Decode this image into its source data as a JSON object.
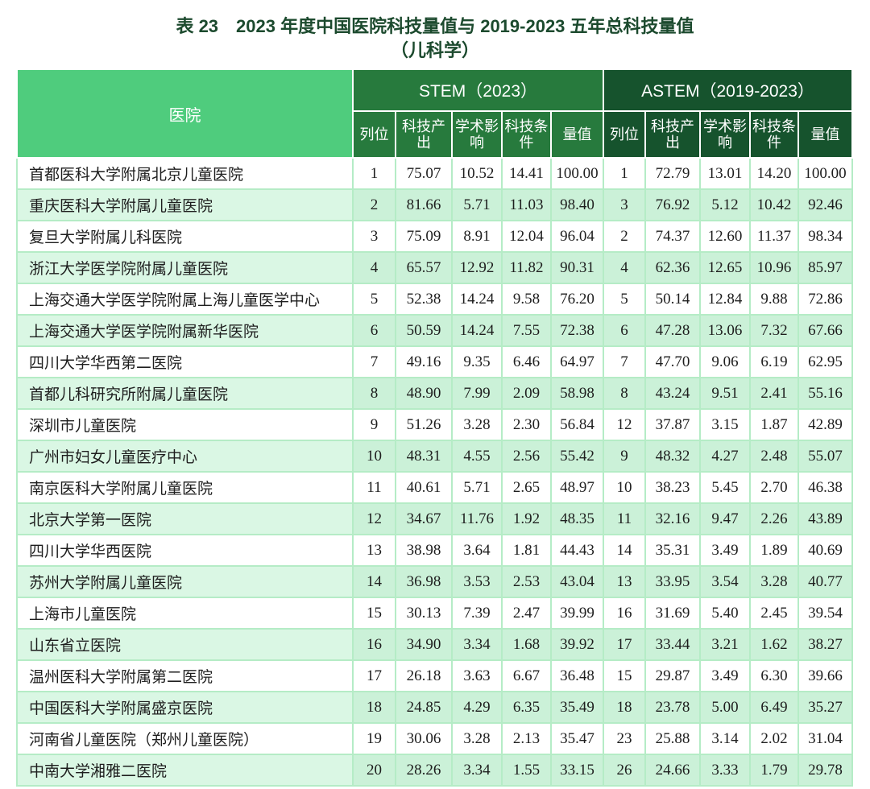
{
  "title": {
    "line1": "表 23　2023 年度中国医院科技量值与 2019-2023 五年总科技量值",
    "line2": "（儿科学）"
  },
  "table": {
    "hospital_header": "医院",
    "groups": {
      "stem": "STEM（2023）",
      "astem": "ASTEM（2019-2023）"
    },
    "sub_headers": [
      "列位",
      "科技产出",
      "学术影响",
      "科技条件",
      "量值"
    ],
    "rows": [
      {
        "hospital": "首都医科大学附属北京儿童医院",
        "stem": [
          "1",
          "75.07",
          "10.52",
          "14.41",
          "100.00"
        ],
        "astem": [
          "1",
          "72.79",
          "13.01",
          "14.20",
          "100.00"
        ]
      },
      {
        "hospital": "重庆医科大学附属儿童医院",
        "stem": [
          "2",
          "81.66",
          "5.71",
          "11.03",
          "98.40"
        ],
        "astem": [
          "3",
          "76.92",
          "5.12",
          "10.42",
          "92.46"
        ]
      },
      {
        "hospital": "复旦大学附属儿科医院",
        "stem": [
          "3",
          "75.09",
          "8.91",
          "12.04",
          "96.04"
        ],
        "astem": [
          "2",
          "74.37",
          "12.60",
          "11.37",
          "98.34"
        ]
      },
      {
        "hospital": "浙江大学医学院附属儿童医院",
        "stem": [
          "4",
          "65.57",
          "12.92",
          "11.82",
          "90.31"
        ],
        "astem": [
          "4",
          "62.36",
          "12.65",
          "10.96",
          "85.97"
        ]
      },
      {
        "hospital": "上海交通大学医学院附属上海儿童医学中心",
        "stem": [
          "5",
          "52.38",
          "14.24",
          "9.58",
          "76.20"
        ],
        "astem": [
          "5",
          "50.14",
          "12.84",
          "9.88",
          "72.86"
        ]
      },
      {
        "hospital": "上海交通大学医学院附属新华医院",
        "stem": [
          "6",
          "50.59",
          "14.24",
          "7.55",
          "72.38"
        ],
        "astem": [
          "6",
          "47.28",
          "13.06",
          "7.32",
          "67.66"
        ]
      },
      {
        "hospital": "四川大学华西第二医院",
        "stem": [
          "7",
          "49.16",
          "9.35",
          "6.46",
          "64.97"
        ],
        "astem": [
          "7",
          "47.70",
          "9.06",
          "6.19",
          "62.95"
        ]
      },
      {
        "hospital": "首都儿科研究所附属儿童医院",
        "stem": [
          "8",
          "48.90",
          "7.99",
          "2.09",
          "58.98"
        ],
        "astem": [
          "8",
          "43.24",
          "9.51",
          "2.41",
          "55.16"
        ]
      },
      {
        "hospital": "深圳市儿童医院",
        "stem": [
          "9",
          "51.26",
          "3.28",
          "2.30",
          "56.84"
        ],
        "astem": [
          "12",
          "37.87",
          "3.15",
          "1.87",
          "42.89"
        ]
      },
      {
        "hospital": "广州市妇女儿童医疗中心",
        "stem": [
          "10",
          "48.31",
          "4.55",
          "2.56",
          "55.42"
        ],
        "astem": [
          "9",
          "48.32",
          "4.27",
          "2.48",
          "55.07"
        ]
      },
      {
        "hospital": "南京医科大学附属儿童医院",
        "stem": [
          "11",
          "40.61",
          "5.71",
          "2.65",
          "48.97"
        ],
        "astem": [
          "10",
          "38.23",
          "5.45",
          "2.70",
          "46.38"
        ]
      },
      {
        "hospital": "北京大学第一医院",
        "stem": [
          "12",
          "34.67",
          "11.76",
          "1.92",
          "48.35"
        ],
        "astem": [
          "11",
          "32.16",
          "9.47",
          "2.26",
          "43.89"
        ]
      },
      {
        "hospital": "四川大学华西医院",
        "stem": [
          "13",
          "38.98",
          "3.64",
          "1.81",
          "44.43"
        ],
        "astem": [
          "14",
          "35.31",
          "3.49",
          "1.89",
          "40.69"
        ]
      },
      {
        "hospital": "苏州大学附属儿童医院",
        "stem": [
          "14",
          "36.98",
          "3.53",
          "2.53",
          "43.04"
        ],
        "astem": [
          "13",
          "33.95",
          "3.54",
          "3.28",
          "40.77"
        ]
      },
      {
        "hospital": "上海市儿童医院",
        "stem": [
          "15",
          "30.13",
          "7.39",
          "2.47",
          "39.99"
        ],
        "astem": [
          "16",
          "31.69",
          "5.40",
          "2.45",
          "39.54"
        ]
      },
      {
        "hospital": "山东省立医院",
        "stem": [
          "16",
          "34.90",
          "3.34",
          "1.68",
          "39.92"
        ],
        "astem": [
          "17",
          "33.44",
          "3.21",
          "1.62",
          "38.27"
        ]
      },
      {
        "hospital": "温州医科大学附属第二医院",
        "stem": [
          "17",
          "26.18",
          "3.63",
          "6.67",
          "36.48"
        ],
        "astem": [
          "15",
          "29.87",
          "3.49",
          "6.30",
          "39.66"
        ]
      },
      {
        "hospital": "中国医科大学附属盛京医院",
        "stem": [
          "18",
          "24.85",
          "4.29",
          "6.35",
          "35.49"
        ],
        "astem": [
          "18",
          "23.78",
          "5.00",
          "6.49",
          "35.27"
        ]
      },
      {
        "hospital": "河南省儿童医院（郑州儿童医院）",
        "stem": [
          "19",
          "30.06",
          "3.28",
          "2.13",
          "35.47"
        ],
        "astem": [
          "23",
          "25.88",
          "3.14",
          "2.02",
          "31.04"
        ]
      },
      {
        "hospital": "中南大学湘雅二医院",
        "stem": [
          "20",
          "28.26",
          "3.34",
          "1.55",
          "33.15"
        ],
        "astem": [
          "26",
          "24.66",
          "3.33",
          "1.79",
          "29.78"
        ]
      }
    ]
  },
  "colors": {
    "title_text": "#1c4a2e",
    "hospital_header_bg": "#4fcc7d",
    "stem_header_bg": "#277a3d",
    "astem_header_bg": "#16532d",
    "even_row_bg": "#cbf1d8",
    "even_row_hospital_bg": "#daf7e4",
    "grid_line": "#b5ecc6",
    "header_text": "#ffffff"
  }
}
